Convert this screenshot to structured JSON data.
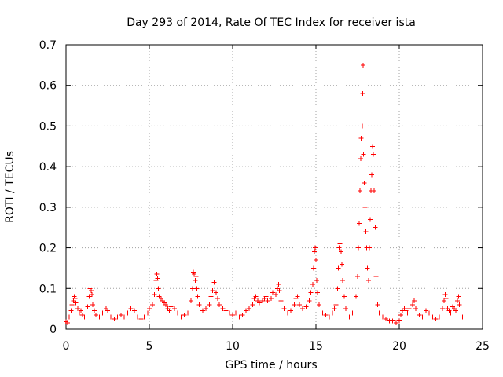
{
  "chart_data": {
    "type": "scatter",
    "title": "Day 293 of 2014, Rate Of TEC Index for receiver ista",
    "xlabel": "GPS time / hours",
    "ylabel": "ROTI / TECUs",
    "xlim": [
      0,
      25
    ],
    "ylim": [
      0,
      0.7
    ],
    "xticks": [
      "0",
      "5",
      "10",
      "15",
      "20",
      "25"
    ],
    "yticks": [
      "0",
      "0.1",
      "0.2",
      "0.3",
      "0.4",
      "0.5",
      "0.6",
      "0.7"
    ],
    "xtick_values": [
      0,
      5,
      10,
      15,
      20,
      25
    ],
    "ytick_values": [
      0,
      0.1,
      0.2,
      0.3,
      0.4,
      0.5,
      0.6,
      0.7
    ],
    "grid": true,
    "marker": "+",
    "color": "#ff0000",
    "series": [
      {
        "name": "ROTI",
        "points": [
          [
            0.0,
            0.018
          ],
          [
            0.1,
            0.015
          ],
          [
            0.2,
            0.03
          ],
          [
            0.3,
            0.045
          ],
          [
            0.35,
            0.06
          ],
          [
            0.45,
            0.07
          ],
          [
            0.5,
            0.08
          ],
          [
            0.55,
            0.075
          ],
          [
            0.6,
            0.065
          ],
          [
            0.7,
            0.05
          ],
          [
            0.8,
            0.04
          ],
          [
            0.9,
            0.045
          ],
          [
            1.0,
            0.035
          ],
          [
            1.1,
            0.03
          ],
          [
            1.2,
            0.04
          ],
          [
            1.3,
            0.055
          ],
          [
            1.4,
            0.08
          ],
          [
            1.45,
            0.1
          ],
          [
            1.5,
            0.095
          ],
          [
            1.55,
            0.085
          ],
          [
            1.6,
            0.06
          ],
          [
            1.7,
            0.045
          ],
          [
            1.8,
            0.035
          ],
          [
            2.0,
            0.03
          ],
          [
            2.2,
            0.04
          ],
          [
            2.4,
            0.05
          ],
          [
            2.5,
            0.045
          ],
          [
            2.7,
            0.03
          ],
          [
            2.9,
            0.025
          ],
          [
            3.1,
            0.03
          ],
          [
            3.3,
            0.035
          ],
          [
            3.5,
            0.03
          ],
          [
            3.7,
            0.04
          ],
          [
            3.9,
            0.05
          ],
          [
            4.1,
            0.045
          ],
          [
            4.3,
            0.03
          ],
          [
            4.5,
            0.025
          ],
          [
            4.7,
            0.03
          ],
          [
            4.9,
            0.04
          ],
          [
            5.0,
            0.05
          ],
          [
            5.2,
            0.06
          ],
          [
            5.3,
            0.085
          ],
          [
            5.4,
            0.12
          ],
          [
            5.45,
            0.135
          ],
          [
            5.5,
            0.125
          ],
          [
            5.55,
            0.1
          ],
          [
            5.6,
            0.08
          ],
          [
            5.7,
            0.075
          ],
          [
            5.8,
            0.07
          ],
          [
            5.9,
            0.065
          ],
          [
            6.0,
            0.06
          ],
          [
            6.1,
            0.05
          ],
          [
            6.2,
            0.045
          ],
          [
            6.3,
            0.055
          ],
          [
            6.5,
            0.05
          ],
          [
            6.7,
            0.04
          ],
          [
            6.9,
            0.03
          ],
          [
            7.1,
            0.035
          ],
          [
            7.3,
            0.04
          ],
          [
            7.5,
            0.07
          ],
          [
            7.6,
            0.1
          ],
          [
            7.65,
            0.14
          ],
          [
            7.7,
            0.135
          ],
          [
            7.75,
            0.12
          ],
          [
            7.8,
            0.13
          ],
          [
            7.85,
            0.1
          ],
          [
            7.9,
            0.08
          ],
          [
            8.0,
            0.06
          ],
          [
            8.2,
            0.045
          ],
          [
            8.4,
            0.05
          ],
          [
            8.6,
            0.06
          ],
          [
            8.7,
            0.08
          ],
          [
            8.8,
            0.095
          ],
          [
            8.9,
            0.115
          ],
          [
            9.0,
            0.09
          ],
          [
            9.1,
            0.075
          ],
          [
            9.2,
            0.06
          ],
          [
            9.4,
            0.05
          ],
          [
            9.6,
            0.045
          ],
          [
            9.8,
            0.04
          ],
          [
            10.0,
            0.035
          ],
          [
            10.2,
            0.04
          ],
          [
            10.4,
            0.03
          ],
          [
            10.6,
            0.035
          ],
          [
            10.8,
            0.045
          ],
          [
            11.0,
            0.05
          ],
          [
            11.2,
            0.06
          ],
          [
            11.3,
            0.075
          ],
          [
            11.4,
            0.08
          ],
          [
            11.5,
            0.07
          ],
          [
            11.6,
            0.065
          ],
          [
            11.8,
            0.07
          ],
          [
            11.9,
            0.075
          ],
          [
            12.0,
            0.08
          ],
          [
            12.1,
            0.07
          ],
          [
            12.3,
            0.075
          ],
          [
            12.4,
            0.09
          ],
          [
            12.6,
            0.085
          ],
          [
            12.7,
            0.1
          ],
          [
            12.75,
            0.11
          ],
          [
            12.8,
            0.095
          ],
          [
            12.9,
            0.07
          ],
          [
            13.1,
            0.05
          ],
          [
            13.3,
            0.04
          ],
          [
            13.5,
            0.045
          ],
          [
            13.7,
            0.06
          ],
          [
            13.8,
            0.075
          ],
          [
            13.9,
            0.08
          ],
          [
            14.0,
            0.06
          ],
          [
            14.2,
            0.05
          ],
          [
            14.4,
            0.055
          ],
          [
            14.6,
            0.07
          ],
          [
            14.7,
            0.09
          ],
          [
            14.8,
            0.11
          ],
          [
            14.85,
            0.15
          ],
          [
            14.9,
            0.19
          ],
          [
            14.95,
            0.2
          ],
          [
            15.0,
            0.17
          ],
          [
            15.05,
            0.12
          ],
          [
            15.1,
            0.09
          ],
          [
            15.2,
            0.06
          ],
          [
            15.4,
            0.04
          ],
          [
            15.6,
            0.035
          ],
          [
            15.8,
            0.03
          ],
          [
            16.0,
            0.04
          ],
          [
            16.1,
            0.05
          ],
          [
            16.2,
            0.06
          ],
          [
            16.3,
            0.1
          ],
          [
            16.35,
            0.15
          ],
          [
            16.4,
            0.2
          ],
          [
            16.45,
            0.21
          ],
          [
            16.5,
            0.19
          ],
          [
            16.55,
            0.16
          ],
          [
            16.6,
            0.12
          ],
          [
            16.7,
            0.08
          ],
          [
            16.8,
            0.05
          ],
          [
            17.0,
            0.03
          ],
          [
            17.2,
            0.04
          ],
          [
            17.4,
            0.08
          ],
          [
            17.5,
            0.13
          ],
          [
            17.55,
            0.2
          ],
          [
            17.6,
            0.26
          ],
          [
            17.65,
            0.34
          ],
          [
            17.7,
            0.42
          ],
          [
            17.72,
            0.47
          ],
          [
            17.75,
            0.49
          ],
          [
            17.78,
            0.5
          ],
          [
            17.8,
            0.58
          ],
          [
            17.82,
            0.65
          ],
          [
            17.85,
            0.43
          ],
          [
            17.9,
            0.36
          ],
          [
            17.95,
            0.3
          ],
          [
            18.0,
            0.24
          ],
          [
            18.05,
            0.2
          ],
          [
            18.1,
            0.15
          ],
          [
            18.15,
            0.12
          ],
          [
            18.2,
            0.2
          ],
          [
            18.25,
            0.27
          ],
          [
            18.3,
            0.34
          ],
          [
            18.35,
            0.38
          ],
          [
            18.4,
            0.45
          ],
          [
            18.45,
            0.43
          ],
          [
            18.5,
            0.34
          ],
          [
            18.55,
            0.25
          ],
          [
            18.6,
            0.13
          ],
          [
            18.7,
            0.06
          ],
          [
            18.8,
            0.04
          ],
          [
            19.0,
            0.03
          ],
          [
            19.2,
            0.025
          ],
          [
            19.4,
            0.02
          ],
          [
            19.6,
            0.02
          ],
          [
            19.8,
            0.015
          ],
          [
            20.0,
            0.02
          ],
          [
            20.1,
            0.035
          ],
          [
            20.2,
            0.045
          ],
          [
            20.3,
            0.05
          ],
          [
            20.4,
            0.045
          ],
          [
            20.5,
            0.04
          ],
          [
            20.6,
            0.05
          ],
          [
            20.8,
            0.06
          ],
          [
            20.9,
            0.07
          ],
          [
            21.0,
            0.05
          ],
          [
            21.2,
            0.035
          ],
          [
            21.4,
            0.03
          ],
          [
            21.6,
            0.045
          ],
          [
            21.8,
            0.04
          ],
          [
            22.0,
            0.03
          ],
          [
            22.2,
            0.025
          ],
          [
            22.4,
            0.03
          ],
          [
            22.6,
            0.05
          ],
          [
            22.7,
            0.07
          ],
          [
            22.75,
            0.085
          ],
          [
            22.8,
            0.075
          ],
          [
            22.9,
            0.05
          ],
          [
            23.0,
            0.045
          ],
          [
            23.1,
            0.04
          ],
          [
            23.2,
            0.055
          ],
          [
            23.3,
            0.05
          ],
          [
            23.4,
            0.045
          ],
          [
            23.5,
            0.07
          ],
          [
            23.55,
            0.08
          ],
          [
            23.6,
            0.06
          ],
          [
            23.7,
            0.04
          ],
          [
            23.8,
            0.03
          ]
        ]
      }
    ]
  }
}
